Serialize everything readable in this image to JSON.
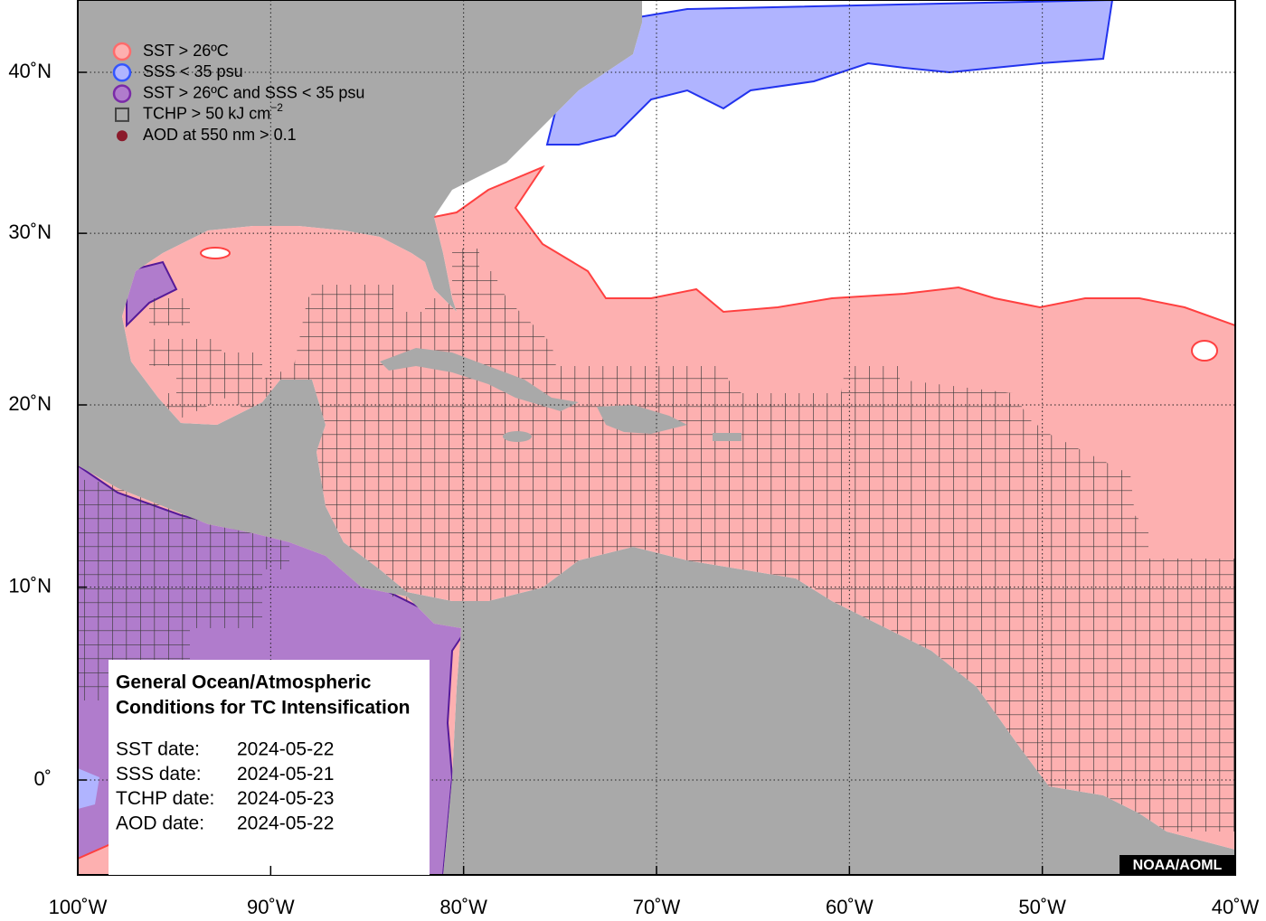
{
  "map": {
    "legend": [
      {
        "label": "SST > 26ºC",
        "color": "#ff6b6b"
      },
      {
        "label": "SSS < 35 psu",
        "color": "#3355ff"
      },
      {
        "label": "SST > 26ºC and SSS < 35 psu",
        "color": "#7a2aa8"
      },
      {
        "label": "TCHP > 50 kJ cm",
        "superscript": "−2",
        "color": "#444444"
      },
      {
        "label": "AOD at 550 nm > 0.1",
        "color": "#8b1a2b"
      }
    ],
    "info": {
      "title": [
        "General Ocean/Atmospheric",
        "Conditions for TC Intensification"
      ],
      "dates": [
        {
          "label": "SST date:",
          "value": "2024-05-22"
        },
        {
          "label": "SSS date:",
          "value": "2024-05-21"
        },
        {
          "label": "TCHP date:",
          "value": "2024-05-23"
        },
        {
          "label": "AOD date:",
          "value": "2024-05-22"
        }
      ]
    },
    "credit": "NOAA/AOML",
    "lon_ticks": [
      {
        "value": -100,
        "label": "100˚W"
      },
      {
        "value": -90,
        "label": "90˚W"
      },
      {
        "value": -80,
        "label": "80˚W"
      },
      {
        "value": -70,
        "label": "70˚W"
      },
      {
        "value": -60,
        "label": "60˚W"
      },
      {
        "value": -50,
        "label": "50˚W"
      },
      {
        "value": -40,
        "label": "40˚W"
      }
    ],
    "lat_ticks": [
      {
        "value": 0,
        "label": "0˚"
      },
      {
        "value": 10,
        "label": "10˚N"
      },
      {
        "value": 20,
        "label": "20˚N"
      },
      {
        "value": 30,
        "label": "30˚N"
      },
      {
        "value": 40,
        "label": "40˚N"
      }
    ]
  }
}
